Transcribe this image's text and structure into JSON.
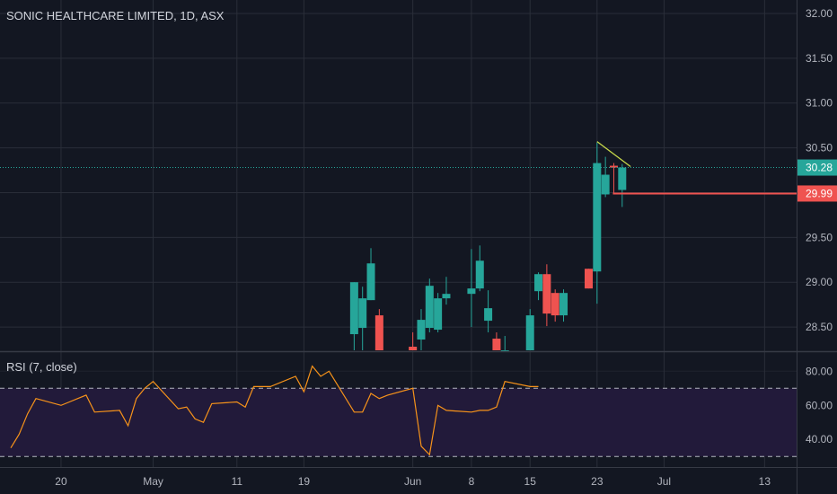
{
  "chart_data": {
    "type": "candlestick",
    "title": "SONIC HEALTHCARE LIMITED, 1D, ASX",
    "price_axis": {
      "range": [
        28.24,
        32.05
      ],
      "ticks": [
        "32.00",
        "31.50",
        "31.00",
        "30.50",
        "30.00",
        "29.50",
        "29.00",
        "28.50"
      ]
    },
    "time_axis": {
      "range": [
        "2020-04-14",
        "2020-07-15"
      ],
      "ticks": [
        {
          "date": "2020-04-20",
          "label": "20"
        },
        {
          "date": "2020-05-01",
          "label": "May"
        },
        {
          "date": "2020-05-11",
          "label": "11"
        },
        {
          "date": "2020-05-19",
          "label": "19"
        },
        {
          "date": "2020-06-01",
          "label": "Jun"
        },
        {
          "date": "2020-06-08",
          "label": "8"
        },
        {
          "date": "2020-06-15",
          "label": "15"
        },
        {
          "date": "2020-06-23",
          "label": "23"
        },
        {
          "date": "2020-07-01",
          "label": "Jul"
        },
        {
          "date": "2020-07-13",
          "label": "13"
        }
      ]
    },
    "candles": [
      {
        "date": "2020-05-25",
        "open": 28.42,
        "high": 29.0,
        "low": 28.24,
        "close": 29.0
      },
      {
        "date": "2020-05-26",
        "open": 28.49,
        "high": 28.95,
        "low": 28.24,
        "close": 28.82
      },
      {
        "date": "2020-05-27",
        "open": 28.8,
        "high": 29.38,
        "low": 28.8,
        "close": 29.21
      },
      {
        "date": "2020-05-28",
        "open": 28.63,
        "high": 28.7,
        "low": 28.24,
        "close": 28.24
      },
      {
        "date": "2020-06-01",
        "open": 28.28,
        "high": 28.44,
        "low": 28.24,
        "close": 28.24
      },
      {
        "date": "2020-06-02",
        "open": 28.36,
        "high": 28.7,
        "low": 28.24,
        "close": 28.58
      },
      {
        "date": "2020-06-03",
        "open": 28.49,
        "high": 29.04,
        "low": 28.44,
        "close": 28.96
      },
      {
        "date": "2020-06-04",
        "open": 28.47,
        "high": 28.88,
        "low": 28.44,
        "close": 28.82
      },
      {
        "date": "2020-06-05",
        "open": 28.82,
        "high": 29.06,
        "low": 28.75,
        "close": 28.87
      },
      {
        "date": "2020-06-08",
        "open": 28.87,
        "high": 29.37,
        "low": 28.5,
        "close": 28.93
      },
      {
        "date": "2020-06-09",
        "open": 28.93,
        "high": 29.41,
        "low": 28.9,
        "close": 29.24
      },
      {
        "date": "2020-06-10",
        "open": 28.57,
        "high": 28.91,
        "low": 28.44,
        "close": 28.71
      },
      {
        "date": "2020-06-11",
        "open": 28.37,
        "high": 28.44,
        "low": 28.24,
        "close": 28.24
      },
      {
        "date": "2020-06-12",
        "open": 28.24,
        "high": 28.4,
        "low": 28.24,
        "close": 28.24
      },
      {
        "date": "2020-06-15",
        "open": 28.24,
        "high": 28.7,
        "low": 28.24,
        "close": 28.63
      },
      {
        "date": "2020-06-16",
        "open": 28.9,
        "high": 29.11,
        "low": 28.8,
        "close": 29.09
      },
      {
        "date": "2020-06-17",
        "open": 29.09,
        "high": 29.2,
        "low": 28.51,
        "close": 28.65
      },
      {
        "date": "2020-06-18",
        "open": 28.88,
        "high": 28.92,
        "low": 28.56,
        "close": 28.63
      },
      {
        "date": "2020-06-19",
        "open": 28.63,
        "high": 28.92,
        "low": 28.56,
        "close": 28.88
      },
      {
        "date": "2020-06-22",
        "open": 29.15,
        "high": 29.15,
        "low": 28.93,
        "close": 28.93
      },
      {
        "date": "2020-06-23",
        "open": 29.12,
        "high": 30.56,
        "low": 28.76,
        "close": 30.33
      },
      {
        "date": "2020-06-24",
        "open": 29.98,
        "high": 30.4,
        "low": 29.95,
        "close": 30.2
      },
      {
        "date": "2020-06-25",
        "open": 30.3,
        "high": 30.33,
        "low": 29.99,
        "close": 30.28
      },
      {
        "date": "2020-06-26",
        "open": 30.03,
        "high": 30.32,
        "low": 29.84,
        "close": 30.28
      }
    ],
    "last_price": {
      "value": 30.28,
      "label": "30.28"
    },
    "horizontal_level": {
      "value": 29.99,
      "label": "29.99",
      "from": "2020-06-25"
    },
    "trendline": {
      "from": {
        "date": "2020-06-23",
        "price": 30.57
      },
      "to": {
        "date": "2020-06-27",
        "price": 30.29
      }
    },
    "rsi": {
      "title": "RSI (7, close)",
      "ticks": [
        "80.00",
        "60.00",
        "40.00"
      ],
      "range": [
        28,
        87
      ],
      "upper_band": 70,
      "lower_band": 30,
      "points": [
        {
          "date": "2020-04-14",
          "value": 35
        },
        {
          "date": "2020-04-15",
          "value": 43
        },
        {
          "date": "2020-04-16",
          "value": 55
        },
        {
          "date": "2020-04-17",
          "value": 64
        },
        {
          "date": "2020-04-20",
          "value": 60
        },
        {
          "date": "2020-04-21",
          "value": 62
        },
        {
          "date": "2020-04-22",
          "value": 64
        },
        {
          "date": "2020-04-23",
          "value": 66
        },
        {
          "date": "2020-04-24",
          "value": 56
        },
        {
          "date": "2020-04-27",
          "value": 57
        },
        {
          "date": "2020-04-28",
          "value": 48
        },
        {
          "date": "2020-04-29",
          "value": 64
        },
        {
          "date": "2020-04-30",
          "value": 70
        },
        {
          "date": "2020-05-01",
          "value": 74
        },
        {
          "date": "2020-05-04",
          "value": 58
        },
        {
          "date": "2020-05-05",
          "value": 59
        },
        {
          "date": "2020-05-06",
          "value": 52
        },
        {
          "date": "2020-05-07",
          "value": 50
        },
        {
          "date": "2020-05-08",
          "value": 61
        },
        {
          "date": "2020-05-11",
          "value": 62
        },
        {
          "date": "2020-05-12",
          "value": 59
        },
        {
          "date": "2020-05-13",
          "value": 71
        },
        {
          "date": "2020-05-14",
          "value": 71
        },
        {
          "date": "2020-05-15",
          "value": 71
        },
        {
          "date": "2020-05-18",
          "value": 77
        },
        {
          "date": "2020-05-19",
          "value": 68
        },
        {
          "date": "2020-05-20",
          "value": 83
        },
        {
          "date": "2020-05-21",
          "value": 77
        },
        {
          "date": "2020-05-22",
          "value": 80
        },
        {
          "date": "2020-05-25",
          "value": 56
        },
        {
          "date": "2020-05-26",
          "value": 56
        },
        {
          "date": "2020-05-27",
          "value": 67
        },
        {
          "date": "2020-05-28",
          "value": 64
        },
        {
          "date": "2020-05-29",
          "value": 66
        },
        {
          "date": "2020-06-01",
          "value": 70
        },
        {
          "date": "2020-06-02",
          "value": 36
        },
        {
          "date": "2020-06-03",
          "value": 31
        },
        {
          "date": "2020-06-04",
          "value": 60
        },
        {
          "date": "2020-06-05",
          "value": 57
        },
        {
          "date": "2020-06-08",
          "value": 56
        },
        {
          "date": "2020-06-09",
          "value": 57
        },
        {
          "date": "2020-06-10",
          "value": 57
        },
        {
          "date": "2020-06-11",
          "value": 59
        },
        {
          "date": "2020-06-12",
          "value": 74
        },
        {
          "date": "2020-06-15",
          "value": 71
        },
        {
          "date": "2020-06-16",
          "value": 71
        }
      ]
    }
  },
  "colors": {
    "background": "#131722",
    "rsi_band_fill": "#221a3a",
    "up": "#26a69a",
    "down": "#ef5350",
    "rsi_line": "#f7931a",
    "trendline": "#c7d94a",
    "last_price_line": "#26a69a"
  }
}
